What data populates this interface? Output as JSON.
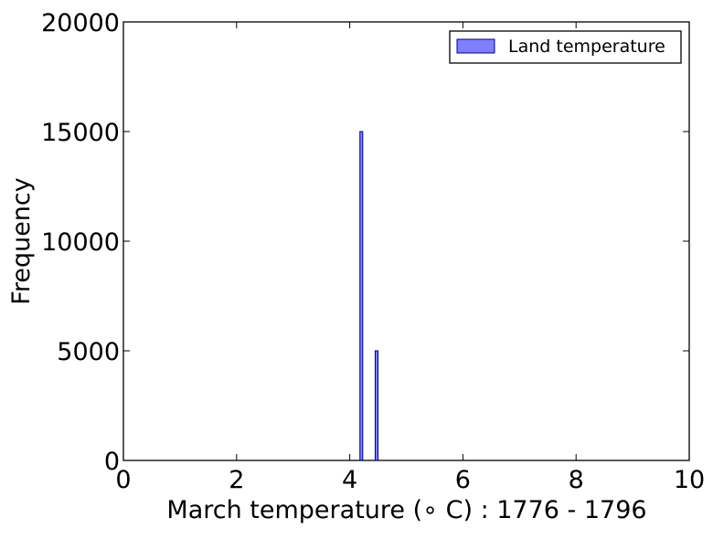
{
  "chart_data": {
    "type": "bar",
    "title": "",
    "xlabel": "March temperature (∘ C) : 1776 - 1796",
    "ylabel": "Frequency",
    "xlim": [
      0,
      10
    ],
    "ylim": [
      0,
      20000
    ],
    "x_ticks": [
      "0",
      "2",
      "4",
      "6",
      "8",
      "10"
    ],
    "y_ticks": [
      "0",
      "5000",
      "10000",
      "15000",
      "20000"
    ],
    "grid": false,
    "legend_position": "top-right",
    "series": [
      {
        "name": "Land temperature",
        "color": "#0000ff",
        "fill_opacity": 0.5,
        "bins": [
          {
            "x_start": 4.18,
            "x_end": 4.23,
            "value": 15000
          },
          {
            "x_start": 4.45,
            "x_end": 4.5,
            "value": 5000
          }
        ]
      }
    ]
  }
}
